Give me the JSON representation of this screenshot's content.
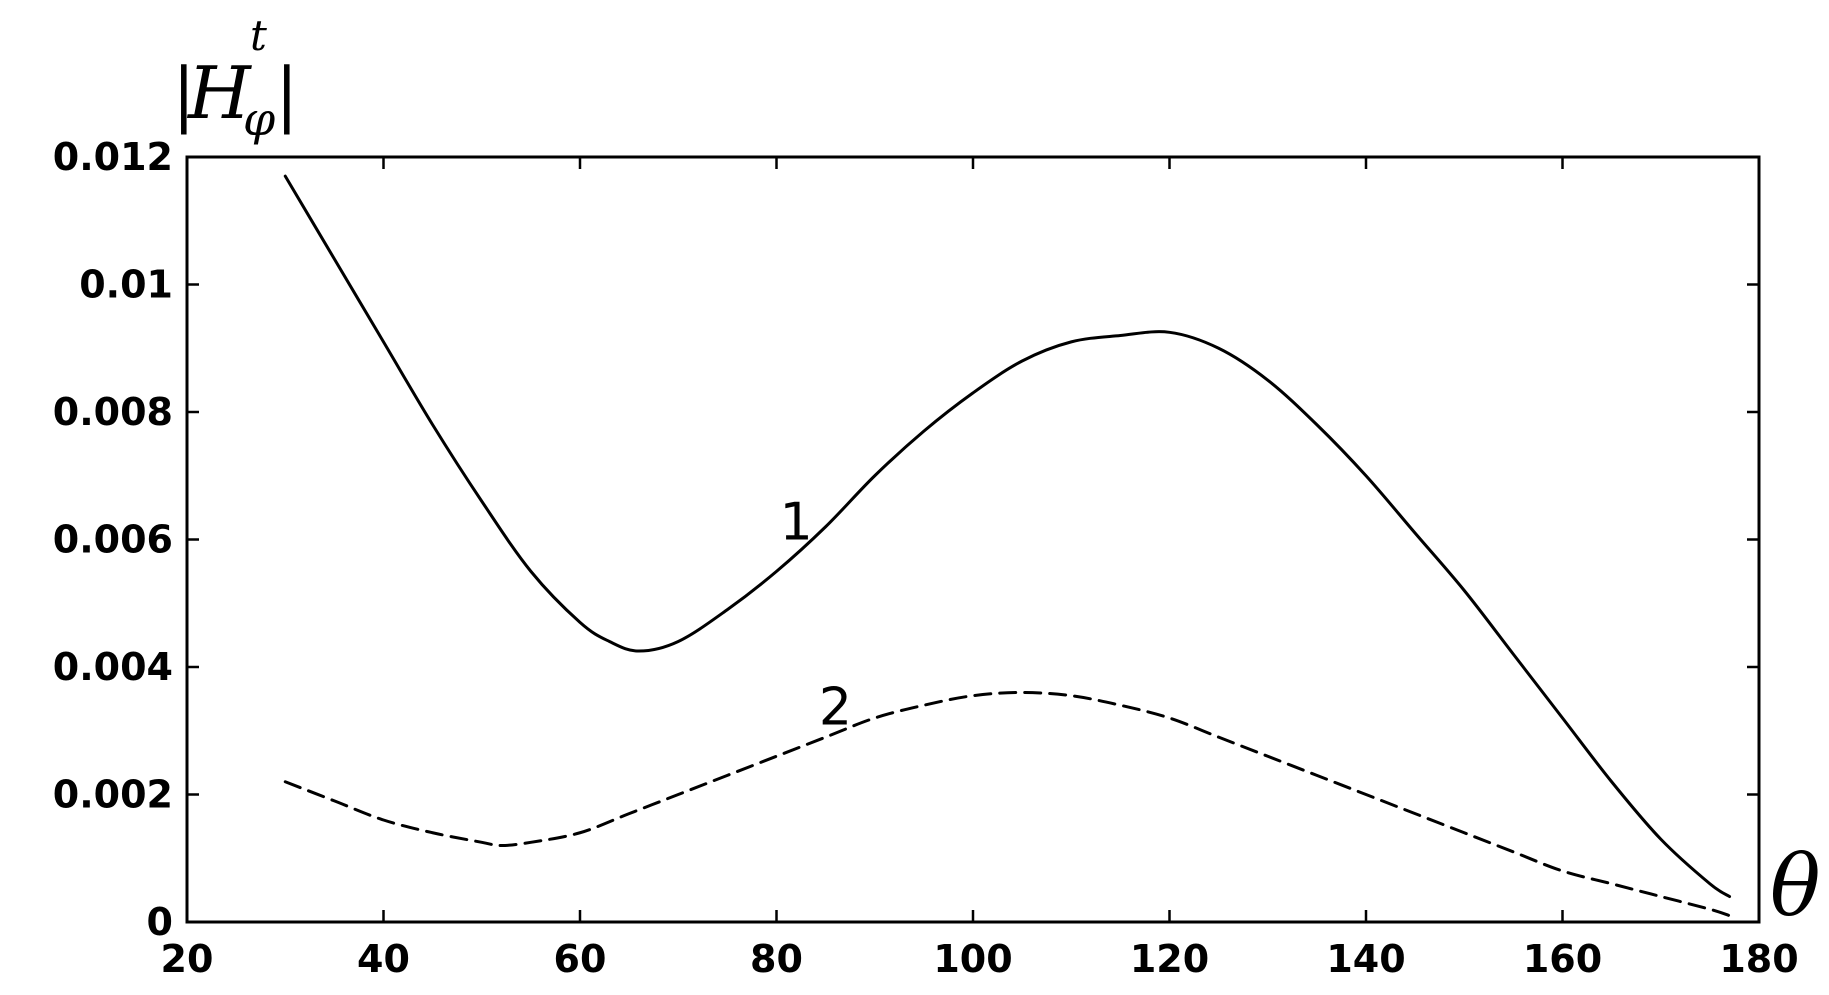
{
  "chart_data": {
    "type": "line",
    "xlabel": "θ",
    "ylabel": {
      "base": "H",
      "subscript": "φ",
      "superscript": "t",
      "bars": "|"
    },
    "xlim": [
      20,
      180
    ],
    "ylim": [
      0,
      0.012
    ],
    "xticks": [
      20,
      40,
      60,
      80,
      100,
      120,
      140,
      160,
      180
    ],
    "yticks": [
      0,
      0.002,
      0.004,
      0.006,
      0.008,
      0.01,
      0.012
    ],
    "xtick_labels": [
      "20",
      "40",
      "60",
      "80",
      "100",
      "120",
      "140",
      "160",
      "180"
    ],
    "ytick_labels": [
      "0",
      "0.002",
      "0.004",
      "0.006",
      "0.008",
      "0.01",
      "0.012"
    ],
    "grid": false,
    "series": [
      {
        "label": "1",
        "style": "solid",
        "color": "#000000",
        "label_at": [
          82,
          0.006
        ],
        "x": [
          30,
          35,
          40,
          45,
          50,
          55,
          60,
          63,
          66,
          70,
          75,
          80,
          85,
          90,
          95,
          100,
          105,
          110,
          115,
          120,
          125,
          130,
          135,
          140,
          145,
          150,
          155,
          160,
          165,
          170,
          175,
          177
        ],
        "y": [
          0.0117,
          0.0104,
          0.0091,
          0.0078,
          0.0066,
          0.0055,
          0.0047,
          0.0044,
          0.00425,
          0.0044,
          0.0049,
          0.0055,
          0.0062,
          0.007,
          0.0077,
          0.0083,
          0.0088,
          0.0091,
          0.0092,
          0.00925,
          0.009,
          0.0085,
          0.0078,
          0.007,
          0.0061,
          0.0052,
          0.0042,
          0.0032,
          0.0022,
          0.0013,
          0.0006,
          0.0004
        ]
      },
      {
        "label": "2",
        "style": "dashed",
        "color": "#000000",
        "label_at": [
          86,
          0.0031
        ],
        "x": [
          30,
          35,
          40,
          45,
          50,
          52,
          55,
          60,
          65,
          70,
          75,
          80,
          85,
          90,
          95,
          100,
          105,
          110,
          115,
          120,
          125,
          130,
          135,
          140,
          145,
          150,
          155,
          160,
          165,
          170,
          175,
          177
        ],
        "y": [
          0.0022,
          0.0019,
          0.0016,
          0.0014,
          0.00125,
          0.0012,
          0.00125,
          0.0014,
          0.0017,
          0.002,
          0.0023,
          0.0026,
          0.0029,
          0.0032,
          0.0034,
          0.00355,
          0.0036,
          0.00355,
          0.0034,
          0.0032,
          0.0029,
          0.0026,
          0.0023,
          0.002,
          0.0017,
          0.0014,
          0.0011,
          0.0008,
          0.0006,
          0.0004,
          0.0002,
          0.0001
        ]
      }
    ]
  }
}
